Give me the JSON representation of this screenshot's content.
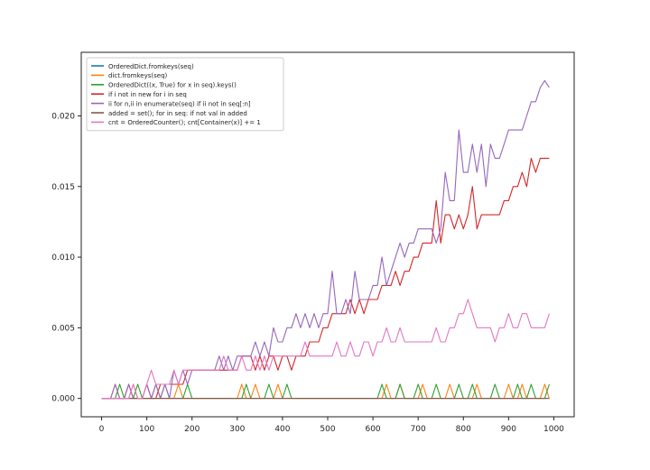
{
  "chart_data": {
    "type": "line",
    "title": "",
    "xlabel": "",
    "ylabel": "",
    "xlim": [
      -45,
      1045
    ],
    "ylim": [
      -0.0013,
      0.0245
    ],
    "x_ticks": [
      {
        "value": 0,
        "label": "0"
      },
      {
        "value": 100,
        "label": "100"
      },
      {
        "value": 200,
        "label": "200"
      },
      {
        "value": 300,
        "label": "300"
      },
      {
        "value": 400,
        "label": "400"
      },
      {
        "value": 500,
        "label": "500"
      },
      {
        "value": 600,
        "label": "600"
      },
      {
        "value": 700,
        "label": "700"
      },
      {
        "value": 800,
        "label": "800"
      },
      {
        "value": 900,
        "label": "900"
      },
      {
        "value": 1000,
        "label": "1000"
      }
    ],
    "y_ticks": [
      {
        "value": 0.0,
        "label": "0.000"
      },
      {
        "value": 0.005,
        "label": "0.005"
      },
      {
        "value": 0.01,
        "label": "0.010"
      },
      {
        "value": 0.015,
        "label": "0.015"
      },
      {
        "value": 0.02,
        "label": "0.020"
      }
    ],
    "grid": false,
    "legend_position": "upper-left",
    "x": [
      0,
      10,
      20,
      30,
      40,
      50,
      60,
      70,
      80,
      90,
      100,
      110,
      120,
      130,
      140,
      150,
      160,
      170,
      180,
      190,
      200,
      210,
      220,
      230,
      240,
      250,
      260,
      270,
      280,
      290,
      300,
      310,
      320,
      330,
      340,
      350,
      360,
      370,
      380,
      390,
      400,
      410,
      420,
      430,
      440,
      450,
      460,
      470,
      480,
      490,
      500,
      510,
      520,
      530,
      540,
      550,
      560,
      570,
      580,
      590,
      600,
      610,
      620,
      630,
      640,
      650,
      660,
      670,
      680,
      690,
      700,
      710,
      720,
      730,
      740,
      750,
      760,
      770,
      780,
      790,
      800,
      810,
      820,
      830,
      840,
      850,
      860,
      870,
      880,
      890,
      900,
      910,
      920,
      930,
      940,
      950,
      960,
      970,
      980,
      990
    ],
    "series": [
      {
        "name": "OrderedDict.fromkeys(seq)",
        "color": "#1f77b4",
        "values": [
          0,
          0,
          0,
          0,
          0,
          0,
          0,
          0,
          0,
          0,
          0,
          0,
          0,
          0,
          0,
          0,
          0,
          0,
          0,
          0,
          0,
          0,
          0,
          0,
          0,
          0,
          0,
          0,
          0,
          0,
          0,
          0,
          0,
          0,
          0,
          0,
          0,
          0,
          0,
          0,
          0,
          0,
          0,
          0,
          0,
          0,
          0,
          0,
          0,
          0,
          0,
          0,
          0,
          0,
          0,
          0,
          0,
          0,
          0,
          0,
          0,
          0,
          0,
          0,
          0,
          0,
          0,
          0,
          0,
          0,
          0,
          0,
          0,
          0,
          0,
          0,
          0,
          0,
          0,
          0,
          0,
          0,
          0,
          0,
          0,
          0,
          0,
          0,
          0,
          0,
          0,
          0,
          0,
          0,
          0,
          0,
          0,
          0,
          0,
          0
        ]
      },
      {
        "name": "dict.fromkeys(seq)",
        "color": "#ff7f0e",
        "values": [
          0,
          0,
          0,
          0.001,
          0,
          0,
          0,
          0.001,
          0,
          0,
          0,
          0,
          0.001,
          0,
          0,
          0,
          0,
          0.001,
          0,
          0,
          0,
          0,
          0,
          0,
          0,
          0,
          0,
          0,
          0,
          0,
          0,
          0.001,
          0,
          0,
          0.001,
          0,
          0,
          0,
          0,
          0.001,
          0,
          0,
          0,
          0,
          0,
          0,
          0,
          0,
          0,
          0,
          0,
          0,
          0,
          0,
          0,
          0,
          0,
          0,
          0,
          0,
          0,
          0,
          0,
          0.001,
          0,
          0,
          0.001,
          0,
          0,
          0,
          0,
          0.001,
          0,
          0,
          0,
          0,
          0,
          0.001,
          0,
          0,
          0,
          0,
          0,
          0.001,
          0,
          0,
          0,
          0,
          0,
          0,
          0.001,
          0,
          0,
          0.001,
          0,
          0,
          0,
          0,
          0.001,
          0
        ]
      },
      {
        "name": "OrderedDict((x, True) for x in seq).keys()",
        "color": "#2ca02c",
        "values": [
          0,
          0,
          0,
          0,
          0.001,
          0,
          0,
          0,
          0.001,
          0,
          0,
          0,
          0,
          0,
          0.001,
          0,
          0,
          0,
          0,
          0.001,
          0,
          0,
          0,
          0,
          0,
          0,
          0,
          0,
          0,
          0,
          0,
          0,
          0.001,
          0,
          0,
          0,
          0,
          0.001,
          0,
          0,
          0,
          0.001,
          0,
          0,
          0,
          0,
          0,
          0,
          0,
          0,
          0,
          0,
          0,
          0,
          0,
          0,
          0,
          0,
          0,
          0,
          0,
          0,
          0.001,
          0,
          0,
          0,
          0.001,
          0,
          0,
          0,
          0.001,
          0,
          0,
          0,
          0.001,
          0,
          0,
          0,
          0,
          0.001,
          0,
          0,
          0.001,
          0,
          0,
          0,
          0,
          0.001,
          0,
          0,
          0,
          0,
          0.001,
          0,
          0,
          0.001,
          0,
          0,
          0,
          0.001
        ]
      },
      {
        "name": "if i not in new for i in seq",
        "color": "#d62728",
        "values": [
          0,
          0,
          0,
          0,
          0,
          0,
          0.001,
          0,
          0,
          0,
          0.001,
          0,
          0,
          0.001,
          0.001,
          0.001,
          0.001,
          0.001,
          0.001,
          0.002,
          0.002,
          0.002,
          0.002,
          0.002,
          0.002,
          0.002,
          0.002,
          0.002,
          0.002,
          0.002,
          0.002,
          0.003,
          0.003,
          0.003,
          0.002,
          0.003,
          0.002,
          0.003,
          0.003,
          0.002,
          0.003,
          0.003,
          0.002,
          0.003,
          0.003,
          0.003,
          0.004,
          0.004,
          0.004,
          0.005,
          0.005,
          0.006,
          0.006,
          0.006,
          0.006,
          0.007,
          0.006,
          0.007,
          0.006,
          0.007,
          0.007,
          0.007,
          0.008,
          0.008,
          0.008,
          0.009,
          0.008,
          0.009,
          0.009,
          0.01,
          0.01,
          0.011,
          0.011,
          0.011,
          0.014,
          0.011,
          0.013,
          0.013,
          0.012,
          0.013,
          0.012,
          0.013,
          0.015,
          0.012,
          0.013,
          0.013,
          0.013,
          0.013,
          0.013,
          0.014,
          0.014,
          0.015,
          0.015,
          0.016,
          0.015,
          0.017,
          0.016,
          0.017,
          0.017,
          0.017
        ]
      },
      {
        "name": "ii for n,ii in enumerate(seq) if ii not in seq[:n]",
        "color": "#9467bd",
        "values": [
          0,
          0,
          0,
          0.001,
          0,
          0,
          0.001,
          0,
          0,
          0,
          0.001,
          0,
          0.001,
          0,
          0.001,
          0,
          0.002,
          0.001,
          0.002,
          0.001,
          0.002,
          0.002,
          0.002,
          0.002,
          0.002,
          0.002,
          0.003,
          0.002,
          0.003,
          0.002,
          0.003,
          0.003,
          0.003,
          0.003,
          0.004,
          0.003,
          0.004,
          0.003,
          0.005,
          0.004,
          0.004,
          0.005,
          0.005,
          0.006,
          0.005,
          0.006,
          0.005,
          0.006,
          0.005,
          0.006,
          0.006,
          0.009,
          0.006,
          0.006,
          0.007,
          0.006,
          0.009,
          0.007,
          0.007,
          0.007,
          0.008,
          0.008,
          0.01,
          0.008,
          0.009,
          0.01,
          0.011,
          0.01,
          0.011,
          0.011,
          0.012,
          0.012,
          0.012,
          0.012,
          0.011,
          0.012,
          0.016,
          0.014,
          0.014,
          0.019,
          0.016,
          0.016,
          0.018,
          0.016,
          0.018,
          0.015,
          0.018,
          0.017,
          0.017,
          0.018,
          0.019,
          0.019,
          0.019,
          0.019,
          0.02,
          0.021,
          0.021,
          0.022,
          0.0225,
          0.022
        ]
      },
      {
        "name": "added = set(); for in seq: if not val in added",
        "color": "#8c564b",
        "values": [
          0,
          0,
          0,
          0,
          0,
          0,
          0,
          0,
          0,
          0,
          0,
          0,
          0,
          0,
          0,
          0,
          0,
          0,
          0,
          0,
          0,
          0,
          0,
          0,
          0,
          0,
          0,
          0,
          0,
          0,
          0,
          0,
          0,
          0,
          0,
          0,
          0,
          0,
          0,
          0,
          0,
          0,
          0,
          0,
          0,
          0,
          0,
          0,
          0,
          0,
          0,
          0,
          0,
          0,
          0,
          0,
          0,
          0,
          0,
          0,
          0,
          0,
          0,
          0,
          0,
          0,
          0,
          0,
          0,
          0,
          0,
          0,
          0,
          0,
          0,
          0,
          0,
          0,
          0,
          0,
          0,
          0,
          0,
          0,
          0,
          0,
          0,
          0,
          0,
          0,
          0,
          0,
          0,
          0,
          0,
          0,
          0,
          0,
          0,
          0
        ]
      },
      {
        "name": "cnt = OrderedCounter(); cnt[Container(x)] += 1",
        "color": "#e377c2",
        "values": [
          0,
          0,
          0,
          0,
          0,
          0,
          0,
          0.001,
          0,
          0,
          0.001,
          0.002,
          0.001,
          0.001,
          0.001,
          0.001,
          0.002,
          0.001,
          0.002,
          0.002,
          0.002,
          0.002,
          0.002,
          0.002,
          0.002,
          0.002,
          0.002,
          0.003,
          0.002,
          0.002,
          0.002,
          0.003,
          0.002,
          0.002,
          0.003,
          0.002,
          0.003,
          0.002,
          0.003,
          0.003,
          0.003,
          0.003,
          0.003,
          0.003,
          0.003,
          0.004,
          0.003,
          0.003,
          0.003,
          0.003,
          0.003,
          0.003,
          0.004,
          0.003,
          0.003,
          0.004,
          0.003,
          0.003,
          0.004,
          0.004,
          0.003,
          0.004,
          0.004,
          0.005,
          0.004,
          0.004,
          0.005,
          0.004,
          0.004,
          0.004,
          0.004,
          0.004,
          0.004,
          0.004,
          0.005,
          0.004,
          0.004,
          0.005,
          0.005,
          0.006,
          0.006,
          0.007,
          0.006,
          0.005,
          0.005,
          0.005,
          0.005,
          0.004,
          0.005,
          0.005,
          0.006,
          0.005,
          0.005,
          0.006,
          0.006,
          0.005,
          0.005,
          0.005,
          0.005,
          0.006
        ]
      }
    ]
  }
}
